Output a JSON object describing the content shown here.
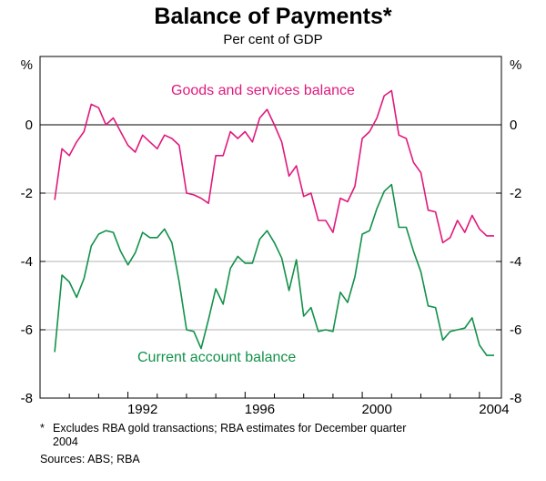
{
  "chart_data": {
    "type": "line",
    "title": "Balance of Payments*",
    "subtitle": "Per cent of GDP",
    "ylabel_left": "%",
    "ylabel_right": "%",
    "ylim": [
      -8,
      2
    ],
    "xlim": [
      1989.0,
      2004.75
    ],
    "yticks": [
      0,
      -2,
      -4,
      -6,
      -8
    ],
    "ytick_labels": [
      "0",
      "-2",
      "-4",
      "-6",
      "-8"
    ],
    "xticks": [
      1992,
      1996,
      2000,
      2004
    ],
    "xtick_labels": [
      "1992",
      "1996",
      "2000",
      "2004"
    ],
    "grid": true,
    "series": [
      {
        "name": "Goods and services balance",
        "color": "#e0197d",
        "x": [
          1989.5,
          1989.75,
          1990.0,
          1990.25,
          1990.5,
          1990.75,
          1991.0,
          1991.25,
          1991.5,
          1991.75,
          1992.0,
          1992.25,
          1992.5,
          1992.75,
          1993.0,
          1993.25,
          1993.5,
          1993.75,
          1994.0,
          1994.25,
          1994.5,
          1994.75,
          1995.0,
          1995.25,
          1995.5,
          1995.75,
          1996.0,
          1996.25,
          1996.5,
          1996.75,
          1997.0,
          1997.25,
          1997.5,
          1997.75,
          1998.0,
          1998.25,
          1998.5,
          1998.75,
          1999.0,
          1999.25,
          1999.5,
          1999.75,
          2000.0,
          2000.25,
          2000.5,
          2000.75,
          2001.0,
          2001.25,
          2001.5,
          2001.75,
          2002.0,
          2002.25,
          2002.5,
          2002.75,
          2003.0,
          2003.25,
          2003.5,
          2003.75,
          2004.0,
          2004.25,
          2004.5
        ],
        "values": [
          -2.2,
          -0.7,
          -0.9,
          -0.5,
          -0.2,
          0.6,
          0.5,
          0.0,
          0.2,
          -0.2,
          -0.6,
          -0.8,
          -0.3,
          -0.5,
          -0.7,
          -0.3,
          -0.4,
          -0.6,
          -2.0,
          -2.05,
          -2.15,
          -2.3,
          -0.9,
          -0.9,
          -0.2,
          -0.4,
          -0.2,
          -0.5,
          0.2,
          0.45,
          0.0,
          -0.5,
          -1.5,
          -1.2,
          -2.1,
          -2.0,
          -2.8,
          -2.8,
          -3.15,
          -2.15,
          -2.25,
          -1.8,
          -0.4,
          -0.2,
          0.2,
          0.85,
          1.0,
          -0.3,
          -0.4,
          -1.1,
          -1.4,
          -2.5,
          -2.55,
          -3.45,
          -3.3,
          -2.8,
          -3.15,
          -2.65,
          -3.05,
          -3.25,
          -3.25
        ]
      },
      {
        "name": "Current account balance",
        "color": "#12914a",
        "x": [
          1989.5,
          1989.75,
          1990.0,
          1990.25,
          1990.5,
          1990.75,
          1991.0,
          1991.25,
          1991.5,
          1991.75,
          1992.0,
          1992.25,
          1992.5,
          1992.75,
          1993.0,
          1993.25,
          1993.5,
          1993.75,
          1994.0,
          1994.25,
          1994.5,
          1994.75,
          1995.0,
          1995.25,
          1995.5,
          1995.75,
          1996.0,
          1996.25,
          1996.5,
          1996.75,
          1997.0,
          1997.25,
          1997.5,
          1997.75,
          1998.0,
          1998.25,
          1998.5,
          1998.75,
          1999.0,
          1999.25,
          1999.5,
          1999.75,
          2000.0,
          2000.25,
          2000.5,
          2000.75,
          2001.0,
          2001.25,
          2001.5,
          2001.75,
          2002.0,
          2002.25,
          2002.5,
          2002.75,
          2003.0,
          2003.25,
          2003.5,
          2003.75,
          2004.0,
          2004.25,
          2004.5
        ],
        "values": [
          -6.65,
          -4.4,
          -4.6,
          -5.05,
          -4.5,
          -3.55,
          -3.2,
          -3.1,
          -3.15,
          -3.7,
          -4.1,
          -3.75,
          -3.15,
          -3.3,
          -3.3,
          -3.05,
          -3.45,
          -4.6,
          -6.0,
          -6.05,
          -6.55,
          -5.7,
          -4.8,
          -5.25,
          -4.2,
          -3.85,
          -4.05,
          -4.05,
          -3.35,
          -3.1,
          -3.45,
          -3.9,
          -4.85,
          -3.95,
          -5.6,
          -5.35,
          -6.05,
          -6.0,
          -6.05,
          -4.9,
          -5.2,
          -4.45,
          -3.2,
          -3.1,
          -2.45,
          -1.95,
          -1.75,
          -3.0,
          -3.0,
          -3.7,
          -4.3,
          -5.3,
          -5.35,
          -6.3,
          -6.05,
          -6.0,
          -5.95,
          -5.65,
          -6.45,
          -6.75,
          -6.75
        ]
      }
    ],
    "annotations": [
      {
        "text": "Goods and services balance",
        "series": "Goods and services balance"
      },
      {
        "text": "Current account balance",
        "series": "Current account balance"
      }
    ]
  },
  "footnote": {
    "marker": "*",
    "line1": "Excludes RBA gold transactions; RBA estimates for December quarter",
    "line2": "2004"
  },
  "sources": "Sources: ABS; RBA"
}
